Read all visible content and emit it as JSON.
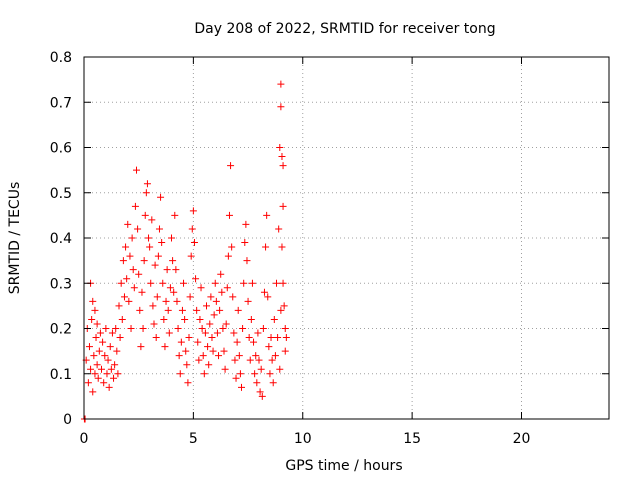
{
  "chart_data": {
    "type": "scatter",
    "title": "Day 208 of 2022, SRMTID for receiver tong",
    "xlabel": "GPS time / hours",
    "ylabel": "SRMTID / TECUs",
    "xlim": [
      0,
      24
    ],
    "ylim": [
      0,
      0.8
    ],
    "xticks": [
      0,
      5,
      10,
      15,
      20
    ],
    "yticks": [
      0,
      0.1,
      0.2,
      0.3,
      0.4,
      0.5,
      0.6,
      0.7,
      0.8
    ],
    "xtick_labels": [
      "0",
      "5",
      "10",
      "15",
      "20"
    ],
    "ytick_labels": [
      "0",
      "0.1",
      "0.2",
      "0.3",
      "0.4",
      "0.5",
      "0.6",
      "0.7",
      "0.8"
    ],
    "grid": true,
    "marker": "+",
    "marker_color": "#ff0000",
    "series": [
      {
        "name": "SRMTID",
        "points": [
          [
            0.02,
            0.0
          ],
          [
            0.05,
            0.0
          ],
          [
            0.1,
            0.13
          ],
          [
            0.15,
            0.2
          ],
          [
            0.2,
            0.08
          ],
          [
            0.25,
            0.16
          ],
          [
            0.3,
            0.3
          ],
          [
            0.3,
            0.11
          ],
          [
            0.35,
            0.22
          ],
          [
            0.4,
            0.26
          ],
          [
            0.4,
            0.06
          ],
          [
            0.45,
            0.14
          ],
          [
            0.5,
            0.24
          ],
          [
            0.5,
            0.1
          ],
          [
            0.55,
            0.18
          ],
          [
            0.6,
            0.12
          ],
          [
            0.6,
            0.21
          ],
          [
            0.65,
            0.09
          ],
          [
            0.7,
            0.15
          ],
          [
            0.75,
            0.19
          ],
          [
            0.8,
            0.11
          ],
          [
            0.85,
            0.17
          ],
          [
            0.9,
            0.08
          ],
          [
            0.95,
            0.14
          ],
          [
            1.0,
            0.2
          ],
          [
            1.05,
            0.1
          ],
          [
            1.1,
            0.13
          ],
          [
            1.15,
            0.07
          ],
          [
            1.2,
            0.16
          ],
          [
            1.25,
            0.11
          ],
          [
            1.3,
            0.19
          ],
          [
            1.35,
            0.09
          ],
          [
            1.4,
            0.12
          ],
          [
            1.45,
            0.2
          ],
          [
            1.5,
            0.15
          ],
          [
            1.55,
            0.1
          ],
          [
            1.6,
            0.25
          ],
          [
            1.65,
            0.18
          ],
          [
            1.7,
            0.3
          ],
          [
            1.75,
            0.22
          ],
          [
            1.8,
            0.35
          ],
          [
            1.85,
            0.27
          ],
          [
            1.9,
            0.38
          ],
          [
            1.95,
            0.31
          ],
          [
            2.0,
            0.43
          ],
          [
            2.05,
            0.26
          ],
          [
            2.1,
            0.36
          ],
          [
            2.15,
            0.2
          ],
          [
            2.2,
            0.4
          ],
          [
            2.25,
            0.33
          ],
          [
            2.3,
            0.29
          ],
          [
            2.35,
            0.47
          ],
          [
            2.4,
            0.55
          ],
          [
            2.45,
            0.42
          ],
          [
            2.5,
            0.32
          ],
          [
            2.55,
            0.24
          ],
          [
            2.6,
            0.16
          ],
          [
            2.65,
            0.28
          ],
          [
            2.7,
            0.2
          ],
          [
            2.75,
            0.35
          ],
          [
            2.8,
            0.45
          ],
          [
            2.85,
            0.5
          ],
          [
            2.9,
            0.52
          ],
          [
            2.95,
            0.4
          ],
          [
            3.0,
            0.38
          ],
          [
            3.05,
            0.3
          ],
          [
            3.1,
            0.44
          ],
          [
            3.15,
            0.25
          ],
          [
            3.2,
            0.21
          ],
          [
            3.25,
            0.34
          ],
          [
            3.3,
            0.18
          ],
          [
            3.35,
            0.27
          ],
          [
            3.4,
            0.36
          ],
          [
            3.45,
            0.42
          ],
          [
            3.5,
            0.49
          ],
          [
            3.55,
            0.39
          ],
          [
            3.6,
            0.3
          ],
          [
            3.65,
            0.22
          ],
          [
            3.7,
            0.16
          ],
          [
            3.75,
            0.26
          ],
          [
            3.8,
            0.33
          ],
          [
            3.85,
            0.24
          ],
          [
            3.9,
            0.19
          ],
          [
            3.95,
            0.29
          ],
          [
            4.0,
            0.4
          ],
          [
            4.05,
            0.35
          ],
          [
            4.1,
            0.28
          ],
          [
            4.15,
            0.45
          ],
          [
            4.2,
            0.33
          ],
          [
            4.25,
            0.26
          ],
          [
            4.3,
            0.2
          ],
          [
            4.35,
            0.14
          ],
          [
            4.4,
            0.1
          ],
          [
            4.45,
            0.17
          ],
          [
            4.5,
            0.24
          ],
          [
            4.55,
            0.3
          ],
          [
            4.6,
            0.22
          ],
          [
            4.65,
            0.15
          ],
          [
            4.7,
            0.12
          ],
          [
            4.75,
            0.08
          ],
          [
            4.8,
            0.18
          ],
          [
            4.85,
            0.27
          ],
          [
            4.9,
            0.36
          ],
          [
            4.95,
            0.42
          ],
          [
            5.0,
            0.46
          ],
          [
            5.05,
            0.39
          ],
          [
            5.1,
            0.31
          ],
          [
            5.15,
            0.24
          ],
          [
            5.2,
            0.17
          ],
          [
            5.25,
            0.13
          ],
          [
            5.3,
            0.22
          ],
          [
            5.35,
            0.29
          ],
          [
            5.4,
            0.2
          ],
          [
            5.45,
            0.14
          ],
          [
            5.5,
            0.1
          ],
          [
            5.55,
            0.19
          ],
          [
            5.6,
            0.25
          ],
          [
            5.65,
            0.16
          ],
          [
            5.7,
            0.12
          ],
          [
            5.75,
            0.21
          ],
          [
            5.8,
            0.27
          ],
          [
            5.85,
            0.18
          ],
          [
            5.9,
            0.15
          ],
          [
            5.95,
            0.23
          ],
          [
            6.0,
            0.3
          ],
          [
            6.05,
            0.26
          ],
          [
            6.1,
            0.19
          ],
          [
            6.15,
            0.14
          ],
          [
            6.2,
            0.24
          ],
          [
            6.25,
            0.32
          ],
          [
            6.3,
            0.28
          ],
          [
            6.35,
            0.2
          ],
          [
            6.4,
            0.15
          ],
          [
            6.45,
            0.11
          ],
          [
            6.5,
            0.21
          ],
          [
            6.55,
            0.29
          ],
          [
            6.6,
            0.36
          ],
          [
            6.65,
            0.45
          ],
          [
            6.7,
            0.56
          ],
          [
            6.75,
            0.38
          ],
          [
            6.8,
            0.27
          ],
          [
            6.85,
            0.19
          ],
          [
            6.9,
            0.13
          ],
          [
            6.95,
            0.09
          ],
          [
            7.0,
            0.17
          ],
          [
            7.05,
            0.24
          ],
          [
            7.1,
            0.14
          ],
          [
            7.15,
            0.1
          ],
          [
            7.2,
            0.07
          ],
          [
            7.25,
            0.2
          ],
          [
            7.3,
            0.3
          ],
          [
            7.35,
            0.39
          ],
          [
            7.4,
            0.43
          ],
          [
            7.45,
            0.35
          ],
          [
            7.5,
            0.26
          ],
          [
            7.55,
            0.18
          ],
          [
            7.6,
            0.13
          ],
          [
            7.65,
            0.22
          ],
          [
            7.7,
            0.3
          ],
          [
            7.75,
            0.17
          ],
          [
            7.8,
            0.1
          ],
          [
            7.85,
            0.14
          ],
          [
            7.9,
            0.08
          ],
          [
            7.95,
            0.19
          ],
          [
            8.0,
            0.13
          ],
          [
            8.05,
            0.06
          ],
          [
            8.1,
            0.11
          ],
          [
            8.15,
            0.05
          ],
          [
            8.2,
            0.2
          ],
          [
            8.25,
            0.28
          ],
          [
            8.3,
            0.38
          ],
          [
            8.35,
            0.45
          ],
          [
            8.4,
            0.27
          ],
          [
            8.45,
            0.16
          ],
          [
            8.5,
            0.1
          ],
          [
            8.55,
            0.18
          ],
          [
            8.6,
            0.13
          ],
          [
            8.65,
            0.08
          ],
          [
            8.7,
            0.22
          ],
          [
            8.75,
            0.14
          ],
          [
            8.8,
            0.3
          ],
          [
            8.85,
            0.18
          ],
          [
            8.9,
            0.42
          ],
          [
            8.95,
            0.6
          ],
          [
            9.0,
            0.74
          ],
          [
            9.0,
            0.69
          ],
          [
            9.05,
            0.58
          ],
          [
            9.1,
            0.47
          ],
          [
            9.05,
            0.38
          ],
          [
            9.1,
            0.3
          ],
          [
            9.15,
            0.25
          ],
          [
            9.2,
            0.2
          ],
          [
            9.2,
            0.15
          ],
          [
            9.25,
            0.18
          ],
          [
            9.1,
            0.56
          ],
          [
            8.95,
            0.11
          ],
          [
            9.0,
            0.24
          ]
        ]
      }
    ]
  }
}
